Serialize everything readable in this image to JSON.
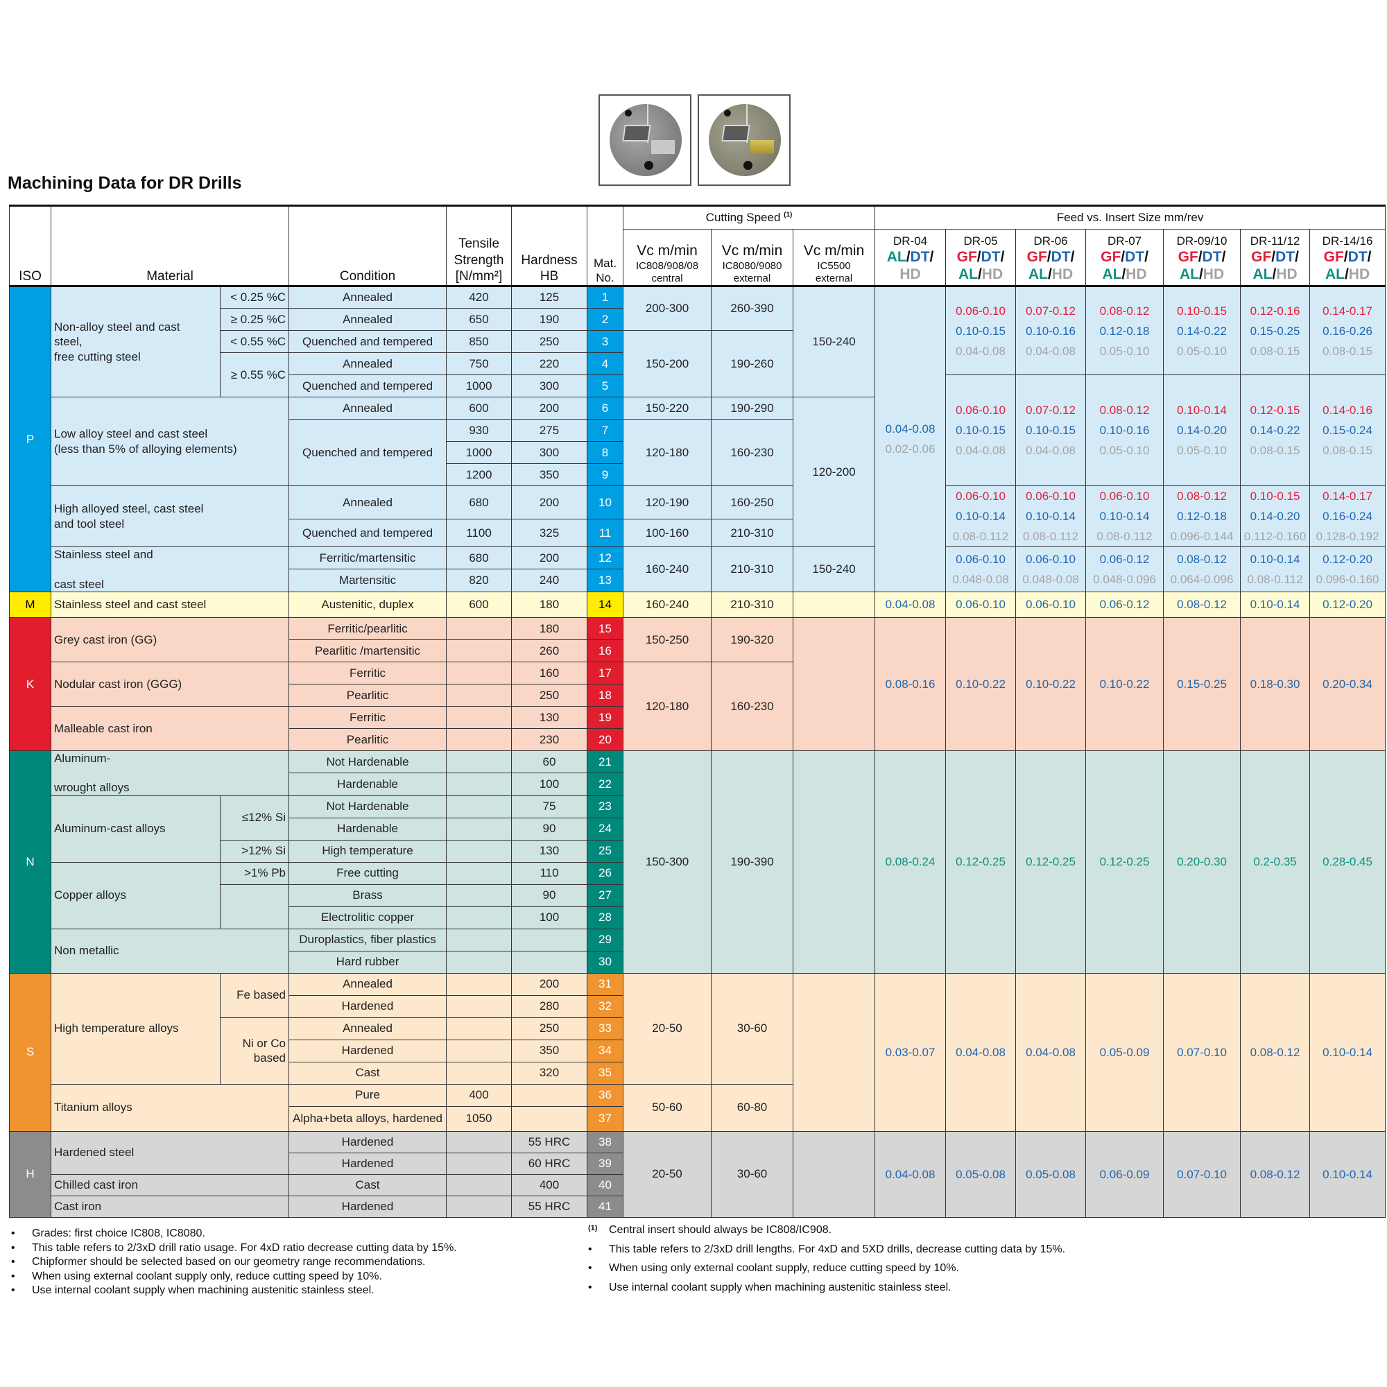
{
  "title": "Machining Data for DR Drills",
  "photos": [
    "drill-head-uncoated",
    "drill-head-with-gold-insert"
  ],
  "grade_colors": {
    "GF": "#e3203b",
    "DT": "#1f67b1",
    "AL": "#11907f",
    "HD": "#a3a3a3",
    "/": "#111111"
  },
  "sections": {
    "P": {
      "strong": "#009fe3",
      "light": "#d5eaf7",
      "text": "#ffffff"
    },
    "M": {
      "strong": "#ffec00",
      "light": "#fffbd2",
      "text": "#000000"
    },
    "K": {
      "strong": "#e11d2e",
      "light": "#f9d6c5",
      "text": "#ffffff"
    },
    "N": {
      "strong": "#00897b",
      "light": "#cfe3e0",
      "text": "#ffffff"
    },
    "S": {
      "strong": "#ef9430",
      "light": "#fde7cd",
      "text": "#ffffff"
    },
    "H": {
      "strong": "#8c8c8c",
      "light": "#d6d6d6",
      "text": "#ffffff"
    }
  },
  "header": {
    "iso": "ISO",
    "material": "Material",
    "condition": "Condition",
    "tensile": "Tensile\nStrength\n[N/mm²]",
    "hardness": "Hardness\nHB",
    "mat_no": "Mat.\nNo.",
    "cutting_speed": "Cutting Speed",
    "cutting_speed_note": "(1)",
    "feed_title": "Feed vs. Insert Size mm/rev",
    "vc": [
      {
        "title": "Vc m/min",
        "sub": "IC808/908/08\ncentral"
      },
      {
        "title": "Vc m/min",
        "sub": "IC8080/9080\nexternal"
      },
      {
        "title": "Vc m/min",
        "sub": "IC5500\nexternal"
      }
    ]
  },
  "table": {
    "iso": [
      {
        "code": "P",
        "rows": 13
      },
      {
        "code": "M",
        "rows": 1
      },
      {
        "code": "K",
        "rows": 6
      },
      {
        "code": "N",
        "rows": 10
      },
      {
        "code": "S",
        "rows": 7
      },
      {
        "code": "H",
        "rows": 4
      }
    ],
    "material": [
      {
        "text": "Non-alloy steel and cast\nsteel,\nfree cutting steel",
        "rows": 5,
        "sub": [
          {
            "text": "< 0.25 %C",
            "rows": 1
          },
          {
            "text": "≥ 0.25 %C",
            "rows": 1
          },
          {
            "text": "< 0.55 %C",
            "rows": 1
          },
          {
            "text": "≥ 0.55 %C",
            "rows": 2
          }
        ]
      },
      {
        "text": "Low alloy steel and cast steel\n(less than 5% of alloying elements)",
        "rows": 4
      },
      {
        "text": "High alloyed steel, cast steel\nand tool steel",
        "rows": 2
      },
      {
        "text": "Stainless steel and\n\ncast steel",
        "rows": 2
      },
      {
        "text": "Stainless steel and cast steel",
        "rows": 1
      },
      {
        "text": "Grey cast iron  (GG)",
        "rows": 2
      },
      {
        "text": "Nodular cast iron (GGG)",
        "rows": 2
      },
      {
        "text": "Malleable cast iron",
        "rows": 2
      },
      {
        "text": "Aluminum-\n\nwrought alloys",
        "rows": 2
      },
      {
        "text": "Aluminum-cast alloys",
        "rows": 3,
        "sub": [
          {
            "text": "≤12% Si",
            "rows": 2
          },
          {
            "text": ">12% Si",
            "rows": 1
          }
        ]
      },
      {
        "text": "Copper alloys",
        "rows": 3,
        "sub": [
          {
            "text": ">1% Pb",
            "rows": 1
          },
          {
            "text": "",
            "rows": 2
          }
        ]
      },
      {
        "text": "Non metallic",
        "rows": 2
      },
      {
        "text": "High temperature alloys",
        "rows": 5,
        "sub": [
          {
            "text": "Fe based",
            "rows": 2
          },
          {
            "text": "Ni or Co\nbased",
            "rows": 3
          }
        ]
      },
      {
        "text": "Titanium alloys",
        "rows": 2
      },
      {
        "text": "Hardened steel",
        "rows": 2
      },
      {
        "text": "Chilled cast iron",
        "rows": 1
      },
      {
        "text": "Cast iron",
        "rows": 1
      }
    ],
    "condition": [
      "Annealed",
      "Annealed",
      "Quenched and tempered",
      "Annealed",
      "Quenched and tempered",
      "Annealed",
      {
        "text": "Quenched and tempered",
        "rows": 3
      },
      "Annealed",
      "Quenched and tempered",
      "Ferritic/martensitic",
      "Martensitic",
      "Austenitic, duplex",
      "Ferritic/pearlitic",
      "Pearlitic /martensitic",
      "Ferritic",
      "Pearlitic",
      "Ferritic",
      "Pearlitic",
      "Not Hardenable",
      "Hardenable",
      "Not Hardenable",
      "Hardenable",
      "High temperature",
      "Free cutting",
      "Brass",
      "Electrolitic copper",
      "Duroplastics, fiber plastics",
      "Hard rubber",
      "Annealed",
      "Hardened",
      "Annealed",
      "Hardened",
      "Cast",
      "Pure",
      "Alpha+beta alloys, hardened",
      "Hardened",
      "Hardened",
      "Cast",
      "Hardened"
    ],
    "tensile": [
      "420",
      "650",
      "850",
      "750",
      "1000",
      "600",
      "930",
      "1000",
      "1200",
      "680",
      "1100",
      "680",
      "820",
      "600",
      "",
      "",
      "",
      "",
      "",
      "",
      "",
      "",
      "",
      "",
      "",
      "",
      "",
      "",
      "",
      "",
      "",
      "",
      "",
      "",
      "",
      "400",
      "1050",
      "",
      "",
      "",
      ""
    ],
    "hardness": [
      "125",
      "190",
      "250",
      "220",
      "300",
      "200",
      "275",
      "300",
      "350",
      "200",
      "325",
      "200",
      "240",
      "180",
      "180",
      "260",
      "160",
      "250",
      "130",
      "230",
      "60",
      "100",
      "75",
      "90",
      "130",
      "110",
      "90",
      "100",
      "",
      "",
      "200",
      "280",
      "250",
      "350",
      "320",
      "",
      "",
      "55 HRC",
      "60 HRC",
      "400",
      "55 HRC"
    ],
    "mat_no": [
      "1",
      "2",
      "3",
      "4",
      "5",
      "6",
      "7",
      "8",
      "9",
      "10",
      "11",
      "12",
      "13",
      "14",
      "15",
      "16",
      "17",
      "18",
      "19",
      "20",
      "21",
      "22",
      "23",
      "24",
      "25",
      "26",
      "27",
      "28",
      "29",
      "30",
      "31",
      "32",
      "33",
      "34",
      "35",
      "36",
      "37",
      "38",
      "39",
      "40",
      "41"
    ],
    "vc_central": [
      {
        "text": "200-300",
        "rows": 2
      },
      {
        "text": "150-200",
        "rows": 3
      },
      {
        "text": "150-220",
        "rows": 1
      },
      {
        "text": "120-180",
        "rows": 3
      },
      {
        "text": "120-190",
        "rows": 1
      },
      {
        "text": "100-160",
        "rows": 1
      },
      {
        "text": "160-240",
        "rows": 2
      },
      {
        "text": "160-240",
        "rows": 1
      },
      {
        "text": "150-250",
        "rows": 2
      },
      {
        "text": "120-180",
        "rows": 4
      },
      {
        "text": "150-300",
        "rows": 10
      },
      {
        "text": "20-50",
        "rows": 5
      },
      {
        "text": "50-60",
        "rows": 2
      },
      {
        "text": "20-50",
        "rows": 4
      }
    ],
    "vc_external": [
      {
        "text": "260-390",
        "rows": 2
      },
      {
        "text": "190-260",
        "rows": 3
      },
      {
        "text": "190-290",
        "rows": 1
      },
      {
        "text": "160-230",
        "rows": 3
      },
      {
        "text": "160-250",
        "rows": 1
      },
      {
        "text": "210-310",
        "rows": 1
      },
      {
        "text": "210-310",
        "rows": 2
      },
      {
        "text": "210-310",
        "rows": 1
      },
      {
        "text": "190-320",
        "rows": 2
      },
      {
        "text": "160-230",
        "rows": 4
      },
      {
        "text": "190-390",
        "rows": 10
      },
      {
        "text": "30-60",
        "rows": 5
      },
      {
        "text": "60-80",
        "rows": 2
      },
      {
        "text": "30-60",
        "rows": 4
      }
    ],
    "vc_ic5500": [
      {
        "text": "150-240",
        "rows": 5
      },
      {
        "text": "120-200",
        "rows": 6
      },
      {
        "text": "150-240",
        "rows": 2
      },
      {
        "text": "",
        "rows": 1
      },
      {
        "text": "",
        "rows": 6
      },
      {
        "text": "",
        "rows": 10
      },
      {
        "text": "",
        "rows": 7
      },
      {
        "text": "",
        "rows": 4
      }
    ],
    "feed_columns": [
      {
        "name": "DR-04",
        "grades": [
          [
            "AL",
            "/",
            "DT",
            "/"
          ],
          [
            "HD"
          ]
        ],
        "cells": [
          {
            "rows": 13,
            "DT": "0.04-0.08",
            "HD": "0.02-0.06"
          },
          {
            "rows": 1,
            "DT": "0.04-0.08"
          },
          {
            "rows": 6,
            "DT": "0.08-0.16"
          },
          {
            "rows": 10,
            "AL": "0.08-0.24"
          },
          {
            "rows": 7,
            "DT": "0.03-0.07"
          },
          {
            "rows": 4,
            "DT": "0.04-0.08"
          }
        ]
      },
      {
        "name": "DR-05",
        "grades": [
          [
            "GF",
            "/",
            "DT",
            "/"
          ],
          [
            "AL",
            "/",
            "HD"
          ]
        ],
        "cells": [
          {
            "rows": 4,
            "GF": "0.06-0.10",
            "DT": "0.10-0.15",
            "HD": "0.04-0.08"
          },
          {
            "rows": 5,
            "GF": "0.06-0.10",
            "DT": "0.10-0.15",
            "HD": "0.04-0.08"
          },
          {
            "rows": 2,
            "GF": "0.06-0.10",
            "DT": "0.10-0.14",
            "HD": "0.08-0.112"
          },
          {
            "rows": 2,
            "DT": "0.06-0.10",
            "HD": "0.048-0.08"
          },
          {
            "rows": 1,
            "DT": "0.06-0.10"
          },
          {
            "rows": 6,
            "DT": "0.10-0.22"
          },
          {
            "rows": 10,
            "AL": "0.12-0.25"
          },
          {
            "rows": 7,
            "DT": "0.04-0.08"
          },
          {
            "rows": 4,
            "DT": "0.05-0.08"
          }
        ]
      },
      {
        "name": "DR-06",
        "grades": [
          [
            "GF",
            "/",
            "DT",
            "/"
          ],
          [
            "AL",
            "/",
            "HD"
          ]
        ],
        "cells": [
          {
            "rows": 4,
            "GF": "0.07-0.12",
            "DT": "0.10-0.16",
            "HD": "0.04-0.08"
          },
          {
            "rows": 5,
            "GF": "0.07-0.12",
            "DT": "0.10-0.15",
            "HD": "0.04-0.08"
          },
          {
            "rows": 2,
            "GF": "0.06-0.10",
            "DT": "0.10-0.14",
            "HD": "0.08-0.112"
          },
          {
            "rows": 2,
            "DT": "0.06-0.10",
            "HD": "0.048-0.08"
          },
          {
            "rows": 1,
            "DT": "0.06-0.10"
          },
          {
            "rows": 6,
            "DT": "0.10-0.22"
          },
          {
            "rows": 10,
            "AL": "0.12-0.25"
          },
          {
            "rows": 7,
            "DT": "0.04-0.08"
          },
          {
            "rows": 4,
            "DT": "0.05-0.08"
          }
        ]
      },
      {
        "name": "DR-07",
        "grades": [
          [
            "GF",
            "/",
            "DT",
            "/"
          ],
          [
            "AL",
            "/",
            "HD"
          ]
        ],
        "cells": [
          {
            "rows": 4,
            "GF": "0.08-0.12",
            "DT": "0.12-0.18",
            "HD": "0.05-0.10"
          },
          {
            "rows": 5,
            "GF": "0.08-0.12",
            "DT": "0.10-0.16",
            "HD": "0.05-0.10"
          },
          {
            "rows": 2,
            "GF": "0.06-0.10",
            "DT": "0.10-0.14",
            "HD": "0.08-0.112"
          },
          {
            "rows": 2,
            "DT": "0.06-0.12",
            "HD": "0.048-0.096"
          },
          {
            "rows": 1,
            "DT": "0.06-0.12"
          },
          {
            "rows": 6,
            "DT": "0.10-0.22"
          },
          {
            "rows": 10,
            "AL": "0.12-0.25"
          },
          {
            "rows": 7,
            "DT": "0.05-0.09"
          },
          {
            "rows": 4,
            "DT": "0.06-0.09"
          }
        ]
      },
      {
        "name": "DR-09/10",
        "grades": [
          [
            "GF",
            "/",
            "DT",
            "/"
          ],
          [
            "AL",
            "/",
            "HD"
          ]
        ],
        "cells": [
          {
            "rows": 4,
            "GF": "0.10-0.15",
            "DT": "0.14-0.22",
            "HD": "0.05-0.10"
          },
          {
            "rows": 5,
            "GF": "0.10-0.14",
            "DT": "0.14-0.20",
            "HD": "0.05-0.10"
          },
          {
            "rows": 2,
            "GF": "0.08-0.12",
            "DT": "0.12-0.18",
            "HD": "0.096-0.144"
          },
          {
            "rows": 2,
            "DT": "0.08-0.12",
            "HD": "0.064-0.096"
          },
          {
            "rows": 1,
            "DT": "0.08-0.12"
          },
          {
            "rows": 6,
            "DT": "0.15-0.25"
          },
          {
            "rows": 10,
            "AL": "0.20-0.30"
          },
          {
            "rows": 7,
            "DT": "0.07-0.10"
          },
          {
            "rows": 4,
            "DT": "0.07-0.10"
          }
        ]
      },
      {
        "name": "DR-11/12",
        "grades": [
          [
            "GF",
            "/",
            "DT",
            "/"
          ],
          [
            "AL",
            "/",
            "HD"
          ]
        ],
        "cells": [
          {
            "rows": 4,
            "GF": "0.12-0.16",
            "DT": "0.15-0.25",
            "HD": "0.08-0.15"
          },
          {
            "rows": 5,
            "GF": "0.12-0.15",
            "DT": "0.14-0.22",
            "HD": "0.08-0.15"
          },
          {
            "rows": 2,
            "GF": "0.10-0.15",
            "DT": "0.14-0.20",
            "HD": "0.112-0.160"
          },
          {
            "rows": 2,
            "DT": "0.10-0.14",
            "HD": "0.08-0.112"
          },
          {
            "rows": 1,
            "DT": "0.10-0.14"
          },
          {
            "rows": 6,
            "DT": "0.18-0.30"
          },
          {
            "rows": 10,
            "AL": "0.2-0.35"
          },
          {
            "rows": 7,
            "DT": "0.08-0.12"
          },
          {
            "rows": 4,
            "DT": "0.08-0.12"
          }
        ]
      },
      {
        "name": "DR-14/16",
        "grades": [
          [
            "GF",
            "/",
            "DT",
            "/"
          ],
          [
            "AL",
            "/",
            "HD"
          ]
        ],
        "cells": [
          {
            "rows": 4,
            "GF": "0.14-0.17",
            "DT": "0.16-0.26",
            "HD": "0.08-0.15"
          },
          {
            "rows": 5,
            "GF": "0.14-0.16",
            "DT": "0.15-0.24",
            "HD": "0.08-0.15"
          },
          {
            "rows": 2,
            "GF": "0.14-0.17",
            "DT": "0.16-0.24",
            "HD": "0.128-0.192"
          },
          {
            "rows": 2,
            "DT": "0.12-0.20",
            "HD": "0.096-0.160"
          },
          {
            "rows": 1,
            "DT": "0.12-0.20"
          },
          {
            "rows": 6,
            "DT": "0.20-0.34"
          },
          {
            "rows": 10,
            "AL": "0.28-0.45"
          },
          {
            "rows": 7,
            "DT": "0.10-0.14"
          },
          {
            "rows": 4,
            "DT": "0.10-0.14"
          }
        ]
      }
    ]
  },
  "notes_left": {
    "bullet": "•",
    "items": [
      "Grades: first choice IC808, IC8080.",
      "This table refers to 2/3xD drill ratio usage. For 4xD ratio decrease cutting data by 15%.",
      "Chipformer should be selected based on our geometry range recommendations.",
      "When using external coolant supply only, reduce cutting speed by 10%.",
      "Use internal coolant supply when machining austenitic stainless steel."
    ]
  },
  "notes_right": {
    "footnote_marker": "(1)",
    "footnote": "Central insert should always be IC808/IC908.",
    "bullet": "•",
    "items": [
      "This table refers to 2/3xD drill lengths. For 4xD and 5XD drills, decrease cutting data by 15%.",
      "When using only external coolant supply, reduce cutting speed by 10%.",
      "Use internal coolant supply when machining austenitic stainless steel."
    ]
  }
}
